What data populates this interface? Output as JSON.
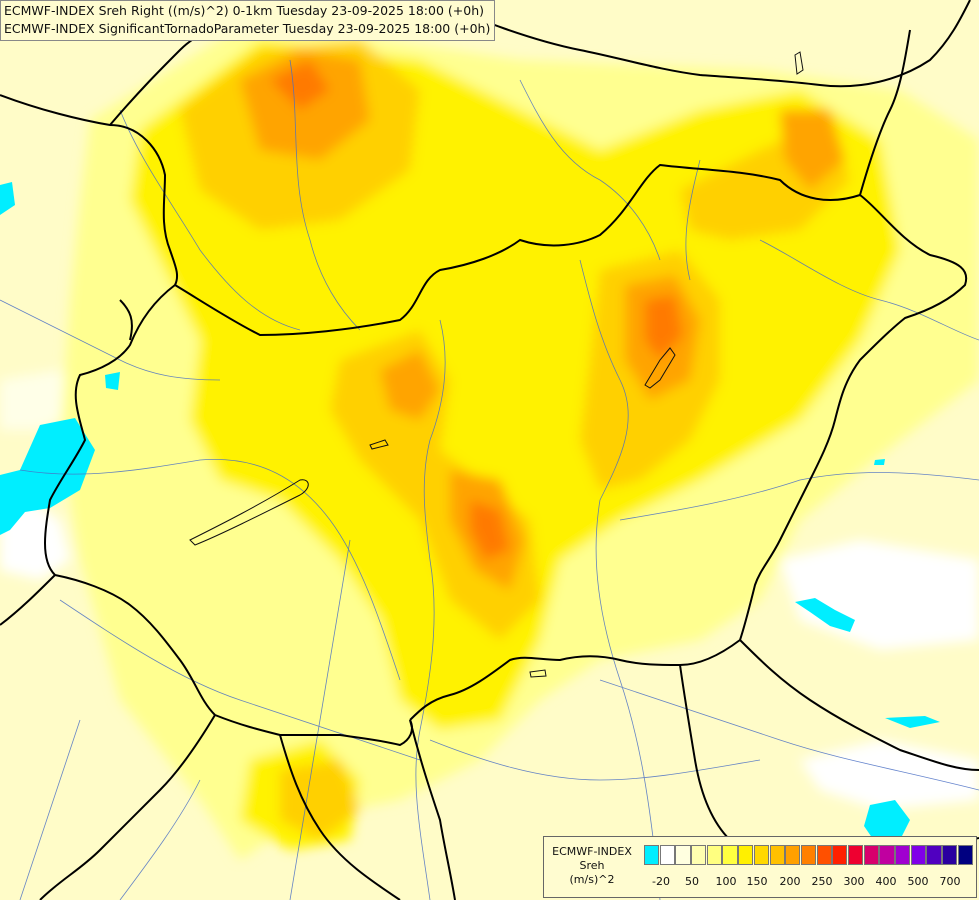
{
  "title": {
    "line1": "ECMWF-INDEX Sreh Right ((m/s)^2) 0-1km Tuesday 23-09-2025 18:00 (+0h)",
    "line2": "ECMWF-INDEX SignificantTornadoParameter Tuesday 23-09-2025 18:00 (+0h)"
  },
  "legend": {
    "line1": "ECMWF-INDEX",
    "line2": "Sreh",
    "line3": "(m/s)^2",
    "colors": [
      "#00eeff",
      "#ffffff",
      "#ffffe0",
      "#ffffb0",
      "#ffff80",
      "#ffff40",
      "#fff000",
      "#ffd800",
      "#ffc000",
      "#ffa000",
      "#ff8000",
      "#ff5000",
      "#ff2000",
      "#ee0030",
      "#d8006c",
      "#c000a0",
      "#a000d0",
      "#8000e8",
      "#5000c0",
      "#2a00a0",
      "#000080"
    ],
    "ticks": [
      "-20",
      "50",
      "100",
      "150",
      "200",
      "250",
      "300",
      "400",
      "500",
      "700"
    ]
  }
}
